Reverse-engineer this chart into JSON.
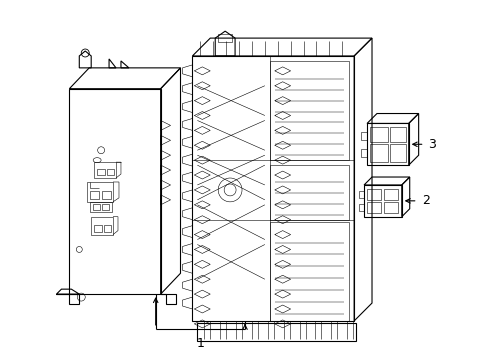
{
  "background_color": "#ffffff",
  "line_color": "#000000",
  "line_width": 0.8,
  "thin_line": 0.4,
  "fig_width": 4.9,
  "fig_height": 3.6,
  "dpi": 100,
  "label_1": "1",
  "label_2": "2",
  "label_3": "3",
  "label_fontsize": 9,
  "arrow_fontsize": 7
}
